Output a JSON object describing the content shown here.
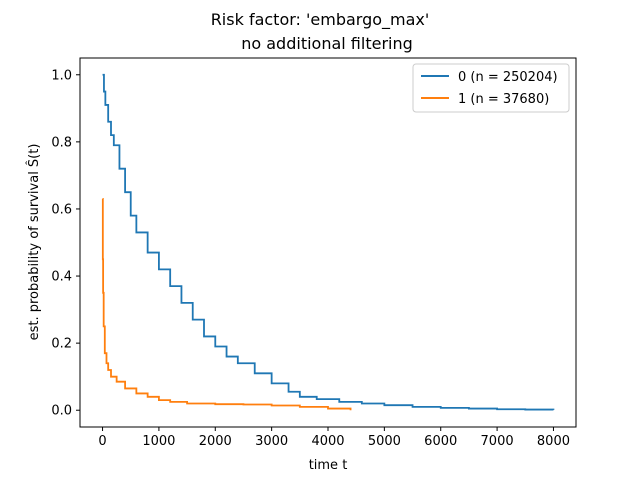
{
  "chart_data": {
    "type": "line",
    "title": "Risk factor: 'embargo_max'",
    "subtitle": "no additional filtering",
    "xlabel": "time t",
    "ylabel": "est. probability of survival Ŝ(t)",
    "xlim": [
      -400,
      8400
    ],
    "ylim": [
      -0.05,
      1.05
    ],
    "x_ticks": [
      0,
      1000,
      2000,
      3000,
      4000,
      5000,
      6000,
      7000,
      8000
    ],
    "x_tick_labels": [
      "0",
      "1000",
      "2000",
      "3000",
      "4000",
      "5000",
      "6000",
      "7000",
      "8000"
    ],
    "y_ticks": [
      0.0,
      0.2,
      0.4,
      0.6,
      0.8,
      1.0
    ],
    "y_tick_labels": [
      "0.0",
      "0.2",
      "0.4",
      "0.6",
      "0.8",
      "1.0"
    ],
    "grid": false,
    "legend_position": "top-right",
    "series": [
      {
        "name": "0 (n = 250204)",
        "color": "#1f77b4",
        "points": [
          [
            0,
            1.0
          ],
          [
            25,
            0.95
          ],
          [
            50,
            0.91
          ],
          [
            100,
            0.86
          ],
          [
            150,
            0.82
          ],
          [
            200,
            0.79
          ],
          [
            300,
            0.72
          ],
          [
            400,
            0.65
          ],
          [
            500,
            0.58
          ],
          [
            600,
            0.53
          ],
          [
            800,
            0.47
          ],
          [
            1000,
            0.42
          ],
          [
            1200,
            0.37
          ],
          [
            1400,
            0.32
          ],
          [
            1600,
            0.27
          ],
          [
            1800,
            0.22
          ],
          [
            2000,
            0.19
          ],
          [
            2200,
            0.16
          ],
          [
            2400,
            0.14
          ],
          [
            2700,
            0.11
          ],
          [
            3000,
            0.08
          ],
          [
            3300,
            0.055
          ],
          [
            3500,
            0.04
          ],
          [
            3800,
            0.033
          ],
          [
            4200,
            0.025
          ],
          [
            4600,
            0.02
          ],
          [
            5000,
            0.015
          ],
          [
            5500,
            0.01
          ],
          [
            6000,
            0.007
          ],
          [
            6500,
            0.005
          ],
          [
            7000,
            0.003
          ],
          [
            7500,
            0.002
          ],
          [
            8000,
            0.001
          ]
        ]
      },
      {
        "name": "1 (n = 37680)",
        "color": "#ff7f0e",
        "points": [
          [
            0,
            0.63
          ],
          [
            5,
            0.45
          ],
          [
            10,
            0.35
          ],
          [
            20,
            0.25
          ],
          [
            40,
            0.17
          ],
          [
            70,
            0.14
          ],
          [
            100,
            0.12
          ],
          [
            150,
            0.1
          ],
          [
            250,
            0.085
          ],
          [
            400,
            0.065
          ],
          [
            600,
            0.05
          ],
          [
            800,
            0.04
          ],
          [
            1000,
            0.03
          ],
          [
            1200,
            0.025
          ],
          [
            1500,
            0.02
          ],
          [
            2000,
            0.018
          ],
          [
            2500,
            0.017
          ],
          [
            3000,
            0.014
          ],
          [
            3500,
            0.01
          ],
          [
            4000,
            0.005
          ],
          [
            4400,
            0.0
          ]
        ]
      }
    ]
  }
}
